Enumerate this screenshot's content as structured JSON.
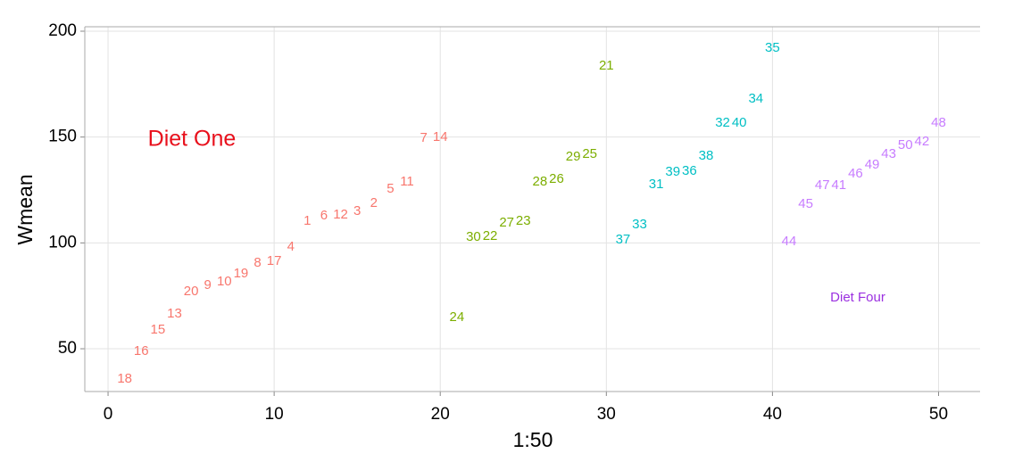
{
  "chart_data": {
    "type": "scatter",
    "x_label": "1:50",
    "y_label": "Wmean",
    "xlim": [
      -1.4,
      52.5
    ],
    "ylim": [
      29.8,
      202.1
    ],
    "xticks": [
      0,
      10,
      20,
      30,
      40,
      50
    ],
    "yticks": [
      50,
      100,
      150,
      200
    ],
    "grid": true,
    "series": [
      {
        "color": "#F8766D",
        "x": [
          1,
          2,
          3,
          4,
          5,
          6,
          7,
          8,
          9,
          10,
          11,
          12,
          13,
          14,
          15,
          16,
          17,
          18,
          19,
          20
        ],
        "values": [
          35.6,
          48.7,
          58.8,
          66.4,
          77,
          80,
          81.6,
          85.4,
          90.4,
          91.3,
          98,
          110.2,
          112.8,
          113.2,
          114.9,
          118.7,
          125.4,
          128.8,
          149.4,
          149.9
        ],
        "labels": [
          "18",
          "16",
          "15",
          "13",
          "20",
          "9",
          "10",
          "19",
          "8",
          "17",
          "4",
          "1",
          "6",
          "12",
          "3",
          "2",
          "5",
          "11",
          "7",
          "14"
        ]
      },
      {
        "color": "#7CAE00",
        "x": [
          21,
          22,
          23,
          24,
          25,
          26,
          27,
          28,
          29,
          30
        ],
        "values": [
          64.7,
          102.7,
          103.1,
          109.4,
          110.2,
          128.8,
          130,
          140.6,
          141.8,
          183.6
        ],
        "labels": [
          "24",
          "30",
          "22",
          "27",
          "23",
          "28",
          "26",
          "29",
          "25",
          "21"
        ]
      },
      {
        "color": "#00BFC4",
        "x": [
          31,
          32,
          33,
          34,
          35,
          36,
          37,
          38,
          39,
          40
        ],
        "values": [
          101.4,
          108.6,
          127.5,
          133.4,
          133.8,
          141,
          156.6,
          156.6,
          168,
          192
        ],
        "labels": [
          "37",
          "33",
          "31",
          "39",
          "36",
          "38",
          "32",
          "40",
          "34",
          "35"
        ]
      },
      {
        "color": "#C77CFF",
        "x": [
          41,
          42,
          43,
          44,
          45,
          46,
          47,
          48,
          49,
          50
        ],
        "values": [
          100.5,
          118.2,
          127.1,
          127.1,
          132.6,
          136.8,
          141.8,
          146,
          147.7,
          156.6
        ],
        "labels": [
          "44",
          "45",
          "47",
          "41",
          "46",
          "49",
          "43",
          "50",
          "42",
          "48"
        ]
      }
    ],
    "annotations": [
      {
        "text": "Diet One",
        "color": "#E8101C"
      },
      {
        "text": "Diet Four",
        "color": "#9B30E0"
      }
    ]
  }
}
